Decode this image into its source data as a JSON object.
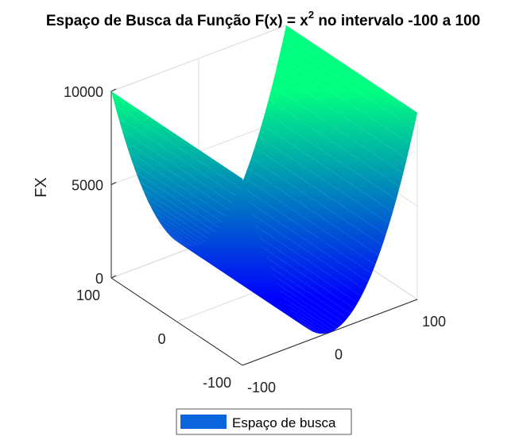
{
  "title": {
    "prefix": "Espaço de Busca da Função F(x) = x",
    "superscript": "2",
    "suffix": " no intervalo -100 a 100"
  },
  "chart_data": {
    "type": "surface",
    "function": "x^2",
    "x_domain": [
      -100,
      100
    ],
    "y_domain": [
      -100,
      100
    ],
    "zlim": [
      0,
      10000
    ],
    "zlabel": "FX",
    "z_ticks": [
      {
        "value": 0,
        "label": "0"
      },
      {
        "value": 5000,
        "label": "5000"
      },
      {
        "value": 10000,
        "label": "10000"
      }
    ],
    "left_axis_ticks": [
      {
        "value": 100,
        "label": "100"
      },
      {
        "value": 0,
        "label": "0"
      },
      {
        "value": -100,
        "label": "-100"
      }
    ],
    "right_axis_ticks": [
      {
        "value": -100,
        "label": "-100"
      },
      {
        "value": 0,
        "label": "0"
      },
      {
        "value": 100,
        "label": "100"
      }
    ],
    "colormap": {
      "low": "#0000ff",
      "high": "#00ff80"
    },
    "grid": true,
    "legend": {
      "position": "bottom",
      "entries": [
        {
          "label": "Espaço de busca",
          "color": "#0a64dc"
        }
      ]
    }
  }
}
